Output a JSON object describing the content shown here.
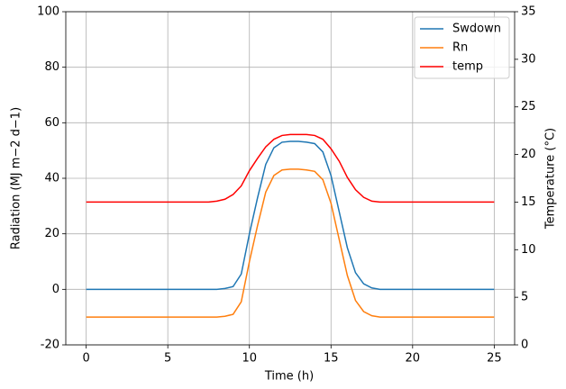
{
  "chart_data": {
    "type": "line",
    "xlabel": "Time (h)",
    "ylabel": "Radiation (MJ m−2 d−1)",
    "y2label": "Temperature (°C)",
    "x": [
      0,
      0.5,
      1,
      1.5,
      2,
      2.5,
      3,
      3.5,
      4,
      4.5,
      5,
      5.5,
      6,
      6.5,
      7,
      7.5,
      8,
      8.5,
      9,
      9.5,
      10,
      10.5,
      11,
      11.5,
      12,
      12.5,
      13,
      13.5,
      14,
      14.5,
      15,
      15.5,
      16,
      16.5,
      17,
      17.5,
      18,
      18.5,
      19,
      19.5,
      20,
      20.5,
      21,
      21.5,
      22,
      22.5,
      23,
      23.5,
      24,
      24.5,
      25
    ],
    "series": [
      {
        "name": "Swdown",
        "color": "#1f77b4",
        "values": [
          0,
          0,
          0,
          0,
          0,
          0,
          0,
          0,
          0,
          0,
          0,
          0,
          0,
          0,
          0,
          0,
          0,
          0.3,
          1,
          5.5,
          20,
          33,
          45,
          51,
          53,
          53.3,
          53.3,
          53,
          52.5,
          49.5,
          41,
          28,
          15,
          6,
          2,
          0.5,
          0,
          0,
          0,
          0,
          0,
          0,
          0,
          0,
          0,
          0,
          0,
          0,
          0,
          0,
          0
        ]
      },
      {
        "name": "Rn",
        "color": "#ff7f0e",
        "values": [
          -10,
          -10,
          -10,
          -10,
          -10,
          -10,
          -10,
          -10,
          -10,
          -10,
          -10,
          -10,
          -10,
          -10,
          -10,
          -10,
          -10,
          -9.7,
          -9,
          -4.5,
          10,
          23,
          35,
          41,
          43,
          43.3,
          43.3,
          43,
          42.5,
          39.5,
          31,
          18,
          5,
          -4,
          -8,
          -9.5,
          -10,
          -10,
          -10,
          -10,
          -10,
          -10,
          -10,
          -10,
          -10,
          -10,
          -10,
          -10,
          -10,
          -10,
          -10
        ]
      },
      {
        "name": "temp",
        "color": "#ff0000",
        "axis": "y2",
        "values": [
          15,
          15,
          15,
          15,
          15,
          15,
          15,
          15,
          15,
          15,
          15,
          15,
          15,
          15,
          15,
          15,
          15.1,
          15.3,
          15.8,
          16.7,
          18.3,
          19.6,
          20.8,
          21.6,
          22,
          22.1,
          22.1,
          22.1,
          22,
          21.6,
          20.6,
          19.3,
          17.6,
          16.3,
          15.5,
          15.1,
          15,
          15,
          15,
          15,
          15,
          15,
          15,
          15,
          15,
          15,
          15,
          15,
          15,
          15,
          15
        ]
      }
    ],
    "xlim": [
      -1.25,
      26.25
    ],
    "xticks": [
      0,
      5,
      10,
      15,
      20,
      25
    ],
    "ylim": [
      -20,
      100
    ],
    "yticks": [
      -20,
      0,
      20,
      40,
      60,
      80,
      100
    ],
    "y2lim": [
      0,
      35
    ],
    "y2ticks": [
      0,
      5,
      10,
      15,
      20,
      25,
      30,
      35
    ],
    "grid": true,
    "legend": "upper right"
  }
}
